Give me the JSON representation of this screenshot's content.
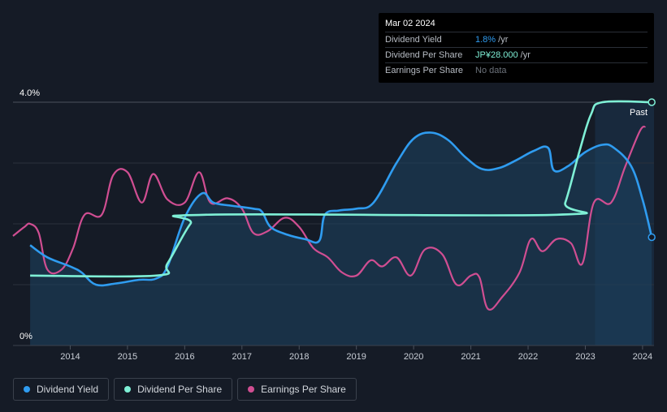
{
  "tooltip": {
    "date": "Mar 02 2024",
    "rows": [
      {
        "label": "Dividend Yield",
        "value": "1.8%",
        "unit": " /yr"
      },
      {
        "label": "Dividend Per Share",
        "value": "JP¥28.000",
        "unit": " /yr"
      },
      {
        "label": "Earnings Per Share",
        "value": "No data",
        "unit": ""
      }
    ]
  },
  "past_label": "Past",
  "legend": [
    {
      "label": "Dividend Yield",
      "color": "#2f9cf0"
    },
    {
      "label": "Dividend Per Share",
      "color": "#7ff0d6"
    },
    {
      "label": "Earnings Per Share",
      "color": "#d04e92"
    }
  ],
  "chart_data": {
    "type": "line",
    "title": "",
    "xlabel": "",
    "ylabel": "",
    "xlim": [
      2013.0,
      2024.2
    ],
    "ylim": [
      0,
      4.0
    ],
    "y_tick_labels": [
      {
        "value": 4.0,
        "label": "4.0%"
      },
      {
        "value": 0,
        "label": "0%"
      }
    ],
    "x_ticks": [
      2014,
      2015,
      2016,
      2017,
      2018,
      2019,
      2020,
      2021,
      2022,
      2023,
      2024
    ],
    "past_region_start": 2023.17,
    "series": [
      {
        "name": "Dividend Yield",
        "color": "#2f9cf0",
        "points": [
          [
            2013.3,
            1.65
          ],
          [
            2013.6,
            1.45
          ],
          [
            2014.0,
            1.3
          ],
          [
            2014.2,
            1.2
          ],
          [
            2014.45,
            1.0
          ],
          [
            2014.8,
            1.02
          ],
          [
            2015.2,
            1.08
          ],
          [
            2015.5,
            1.1
          ],
          [
            2015.7,
            1.3
          ],
          [
            2016.0,
            2.1
          ],
          [
            2016.3,
            2.5
          ],
          [
            2016.5,
            2.35
          ],
          [
            2016.8,
            2.3
          ],
          [
            2017.2,
            2.25
          ],
          [
            2017.35,
            2.2
          ],
          [
            2017.5,
            1.95
          ],
          [
            2017.8,
            1.82
          ],
          [
            2018.1,
            1.75
          ],
          [
            2018.35,
            1.72
          ],
          [
            2018.45,
            2.15
          ],
          [
            2018.7,
            2.22
          ],
          [
            2019.0,
            2.25
          ],
          [
            2019.3,
            2.35
          ],
          [
            2019.7,
            3.0
          ],
          [
            2020.0,
            3.4
          ],
          [
            2020.3,
            3.5
          ],
          [
            2020.6,
            3.38
          ],
          [
            2020.9,
            3.1
          ],
          [
            2021.2,
            2.9
          ],
          [
            2021.5,
            2.92
          ],
          [
            2021.8,
            3.05
          ],
          [
            2022.1,
            3.2
          ],
          [
            2022.35,
            3.25
          ],
          [
            2022.45,
            2.88
          ],
          [
            2022.7,
            2.95
          ],
          [
            2023.0,
            3.18
          ],
          [
            2023.3,
            3.3
          ],
          [
            2023.5,
            3.25
          ],
          [
            2023.8,
            2.95
          ],
          [
            2024.0,
            2.4
          ],
          [
            2024.16,
            1.78
          ]
        ]
      },
      {
        "name": "Dividend Per Share",
        "color": "#7ff0d6",
        "points": [
          [
            2013.3,
            1.15
          ],
          [
            2015.5,
            1.15
          ],
          [
            2015.7,
            1.35
          ],
          [
            2016.1,
            2.0
          ],
          [
            2016.35,
            2.15
          ],
          [
            2022.5,
            2.15
          ],
          [
            2022.65,
            2.35
          ],
          [
            2022.9,
            3.2
          ],
          [
            2023.1,
            3.8
          ],
          [
            2023.3,
            4.0
          ],
          [
            2024.16,
            4.0
          ]
        ]
      },
      {
        "name": "Earnings Per Share",
        "color": "#d04e92",
        "points": [
          [
            2013.0,
            1.8
          ],
          [
            2013.2,
            1.95
          ],
          [
            2013.3,
            2.0
          ],
          [
            2013.45,
            1.85
          ],
          [
            2013.6,
            1.25
          ],
          [
            2013.85,
            1.25
          ],
          [
            2014.05,
            1.6
          ],
          [
            2014.25,
            2.15
          ],
          [
            2014.55,
            2.15
          ],
          [
            2014.75,
            2.8
          ],
          [
            2015.0,
            2.85
          ],
          [
            2015.25,
            2.35
          ],
          [
            2015.45,
            2.82
          ],
          [
            2015.7,
            2.4
          ],
          [
            2016.0,
            2.35
          ],
          [
            2016.25,
            2.85
          ],
          [
            2016.45,
            2.35
          ],
          [
            2016.75,
            2.42
          ],
          [
            2017.0,
            2.25
          ],
          [
            2017.2,
            1.85
          ],
          [
            2017.45,
            1.88
          ],
          [
            2017.75,
            2.1
          ],
          [
            2018.0,
            1.95
          ],
          [
            2018.25,
            1.6
          ],
          [
            2018.5,
            1.45
          ],
          [
            2018.75,
            1.2
          ],
          [
            2019.0,
            1.15
          ],
          [
            2019.25,
            1.4
          ],
          [
            2019.45,
            1.3
          ],
          [
            2019.7,
            1.45
          ],
          [
            2019.95,
            1.15
          ],
          [
            2020.2,
            1.58
          ],
          [
            2020.5,
            1.5
          ],
          [
            2020.75,
            1.0
          ],
          [
            2021.0,
            1.15
          ],
          [
            2021.15,
            1.12
          ],
          [
            2021.3,
            0.6
          ],
          [
            2021.55,
            0.8
          ],
          [
            2021.85,
            1.2
          ],
          [
            2022.05,
            1.75
          ],
          [
            2022.25,
            1.55
          ],
          [
            2022.5,
            1.75
          ],
          [
            2022.75,
            1.68
          ],
          [
            2022.95,
            1.35
          ],
          [
            2023.15,
            2.35
          ],
          [
            2023.45,
            2.35
          ],
          [
            2023.7,
            2.95
          ],
          [
            2023.95,
            3.52
          ],
          [
            2024.05,
            3.6
          ]
        ]
      }
    ]
  }
}
